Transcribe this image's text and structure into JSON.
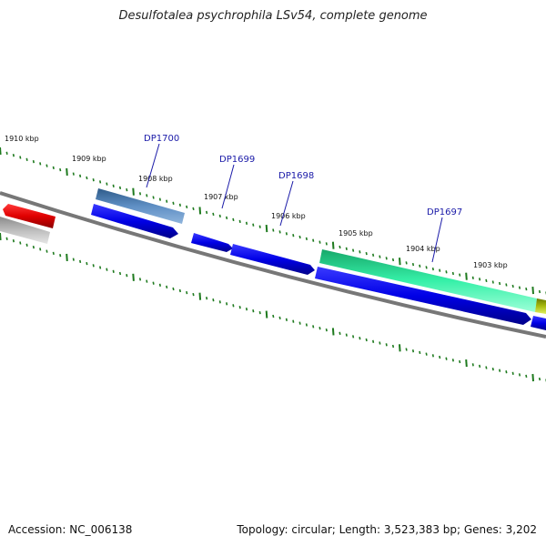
{
  "title": "Desulfotalea psychrophila LSv54, complete genome",
  "footer": {
    "accession": "Accession: NC_006138",
    "stats": "Topology: circular; Length: 3,523,383 bp; Genes: 3,202"
  },
  "scale_labels": [
    "1910 kbp",
    "1909 kbp",
    "1908 kbp",
    "1907 kbp",
    "1906 kbp",
    "1905 kbp",
    "1904 kbp",
    "1903 kbp"
  ],
  "gene_labels": [
    "DP1700",
    "DP1699",
    "DP1698",
    "DP1697"
  ],
  "colors": {
    "backbone": "#777777",
    "tick": "#1e7a1e",
    "forward_gene": "#0000e6",
    "steelblue_gene": "#4a7ab0",
    "red_gene": "#e00000",
    "gray_gene": "#b0b0b0",
    "green_gene": "#2ee8a0",
    "olive_gene": "#8a9a00",
    "label": "#1a1aa8"
  }
}
